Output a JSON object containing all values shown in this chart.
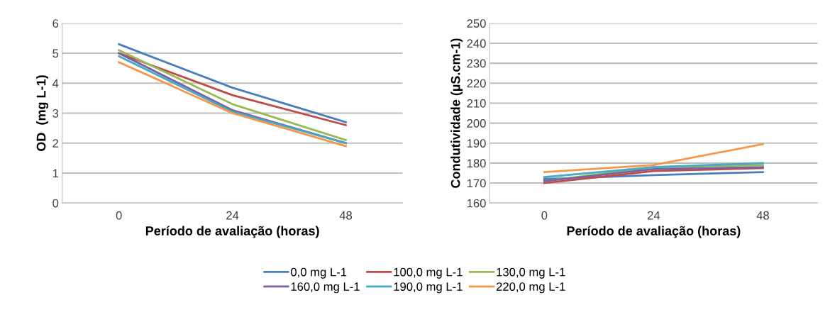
{
  "chart_data": [
    {
      "type": "line",
      "xlabel": "Período de avaliação (horas)",
      "ylabel": "OD  (mg L-1)",
      "categories": [
        "0",
        "24",
        "48"
      ],
      "ylim": [
        0,
        6
      ],
      "yticks": [
        0,
        1,
        2,
        3,
        4,
        5,
        6
      ],
      "grid": "y",
      "legend": "bottom",
      "marker": "none",
      "series": [
        {
          "name": "0,0 mg L-1",
          "color": "#4a7ebb",
          "values": [
            5.3,
            3.85,
            2.7
          ]
        },
        {
          "name": "100,0 mg L-1",
          "color": "#be4b48",
          "values": [
            5.0,
            3.6,
            2.6
          ]
        },
        {
          "name": "130,0 mg L-1",
          "color": "#98b954",
          "values": [
            5.1,
            3.3,
            2.1
          ]
        },
        {
          "name": "160,0 mg L-1",
          "color": "#7d60a0",
          "values": [
            5.0,
            3.1,
            2.0
          ]
        },
        {
          "name": "190,0 mg L-1",
          "color": "#46aac5",
          "values": [
            4.9,
            3.05,
            2.0
          ]
        },
        {
          "name": "220,0 mg L-1",
          "color": "#f79646",
          "values": [
            4.7,
            3.0,
            1.9
          ]
        }
      ]
    },
    {
      "type": "line",
      "xlabel": "Período de avaliação (horas)",
      "ylabel": "Condutividade (µS.cm-1)",
      "categories": [
        "0",
        "24",
        "48"
      ],
      "ylim": [
        160,
        250
      ],
      "yticks": [
        160,
        170,
        180,
        190,
        200,
        210,
        220,
        230,
        240,
        250
      ],
      "grid": "y",
      "marker": "none",
      "series": [
        {
          "color": "#4a7ebb",
          "values": [
            172,
            174,
            175.5
          ]
        },
        {
          "color": "#be4b48",
          "values": [
            170,
            176,
            177.5
          ]
        },
        {
          "color": "#98b954",
          "values": [
            171,
            178,
            179
          ]
        },
        {
          "color": "#7d60a0",
          "values": [
            171,
            177,
            178
          ]
        },
        {
          "color": "#46aac5",
          "values": [
            173,
            178,
            180
          ]
        },
        {
          "color": "#f79646",
          "values": [
            175.5,
            179,
            189.5
          ]
        }
      ]
    }
  ]
}
